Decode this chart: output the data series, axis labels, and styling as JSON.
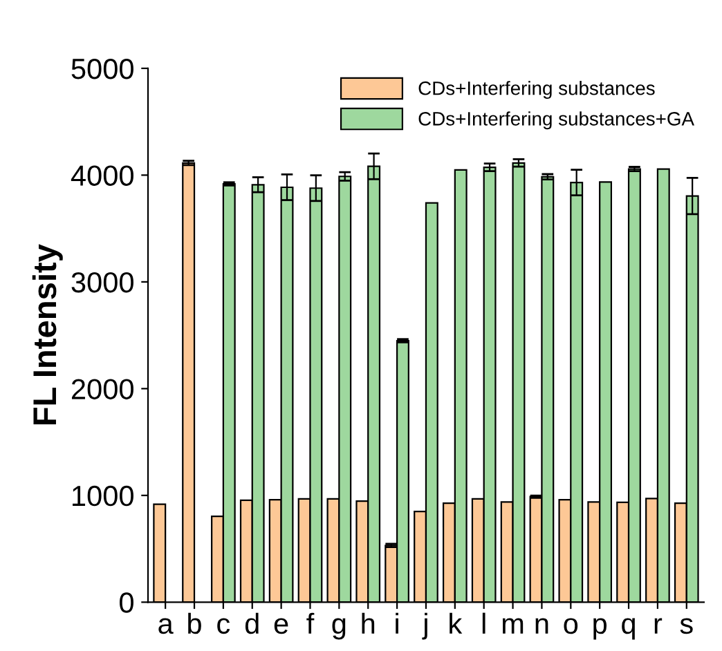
{
  "chart_data": {
    "type": "bar",
    "ylabel": "FL Intensity",
    "categories": [
      "a",
      "b",
      "c",
      "d",
      "e",
      "f",
      "g",
      "h",
      "i",
      "j",
      "k",
      "l",
      "m",
      "n",
      "o",
      "p",
      "q",
      "r",
      "s"
    ],
    "series": [
      {
        "name": "CDs+Interfering substances",
        "color": "#fdc896",
        "values": [
          918,
          4114,
          804,
          955,
          959,
          967,
          967,
          947,
          531,
          849,
          927,
          967,
          939,
          988,
          959,
          939,
          935,
          971,
          927
        ],
        "errors": [
          null,
          20,
          null,
          null,
          null,
          null,
          null,
          null,
          15,
          null,
          null,
          null,
          null,
          10,
          null,
          null,
          null,
          null,
          null
        ]
      },
      {
        "name": "CDs+Interfering substances+GA",
        "color": "#9ed89e",
        "values": [
          null,
          null,
          3918,
          3910,
          3886,
          3878,
          3988,
          4082,
          2449,
          3739,
          4049,
          4073,
          4114,
          3984,
          3931,
          3935,
          4057,
          4057,
          3804
        ],
        "errors": [
          null,
          null,
          15,
          70,
          120,
          120,
          40,
          120,
          15,
          null,
          null,
          35,
          35,
          25,
          120,
          null,
          20,
          null,
          170
        ]
      }
    ],
    "ylim": [
      0,
      5000
    ],
    "yticks": [
      0,
      1000,
      2000,
      3000,
      4000,
      5000
    ],
    "grid": false,
    "legend": "top right"
  }
}
